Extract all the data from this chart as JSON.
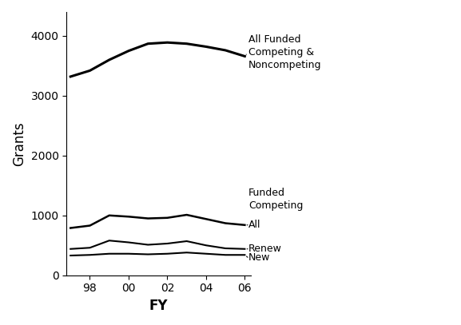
{
  "years": [
    1997,
    1998,
    1999,
    2000,
    2001,
    2002,
    2003,
    2004,
    2005,
    2006
  ],
  "xtick_labels": [
    "98",
    "00",
    "02",
    "04",
    "06"
  ],
  "xtick_positions": [
    1998,
    2000,
    2002,
    2004,
    2006
  ],
  "all_funded": [
    3320,
    3420,
    3600,
    3750,
    3870,
    3890,
    3870,
    3820,
    3760,
    3660
  ],
  "funded_competing_all": [
    790,
    830,
    1000,
    980,
    950,
    960,
    1010,
    940,
    870,
    840
  ],
  "funded_competing_renew": [
    440,
    460,
    580,
    550,
    510,
    530,
    570,
    500,
    450,
    440
  ],
  "funded_competing_new": [
    330,
    340,
    360,
    360,
    350,
    360,
    380,
    360,
    340,
    340
  ],
  "line_color": "#000000",
  "background_color": "#ffffff",
  "ylabel": "Grants",
  "xlabel": "FY",
  "ylim": [
    0,
    4400
  ],
  "xlim": [
    1996.8,
    2006.3
  ],
  "label_all_funded": "All Funded\nCompeting &\nNoncompeting",
  "label_funded_competing": "Funded\nCompeting",
  "label_all": "All",
  "label_renew": "Renew",
  "label_new": "New",
  "linewidth_top": 2.2,
  "linewidth_mid": 1.8,
  "linewidth_thin": 1.5,
  "axis_fontsize": 12,
  "tick_fontsize": 10,
  "annotation_fontsize": 9
}
